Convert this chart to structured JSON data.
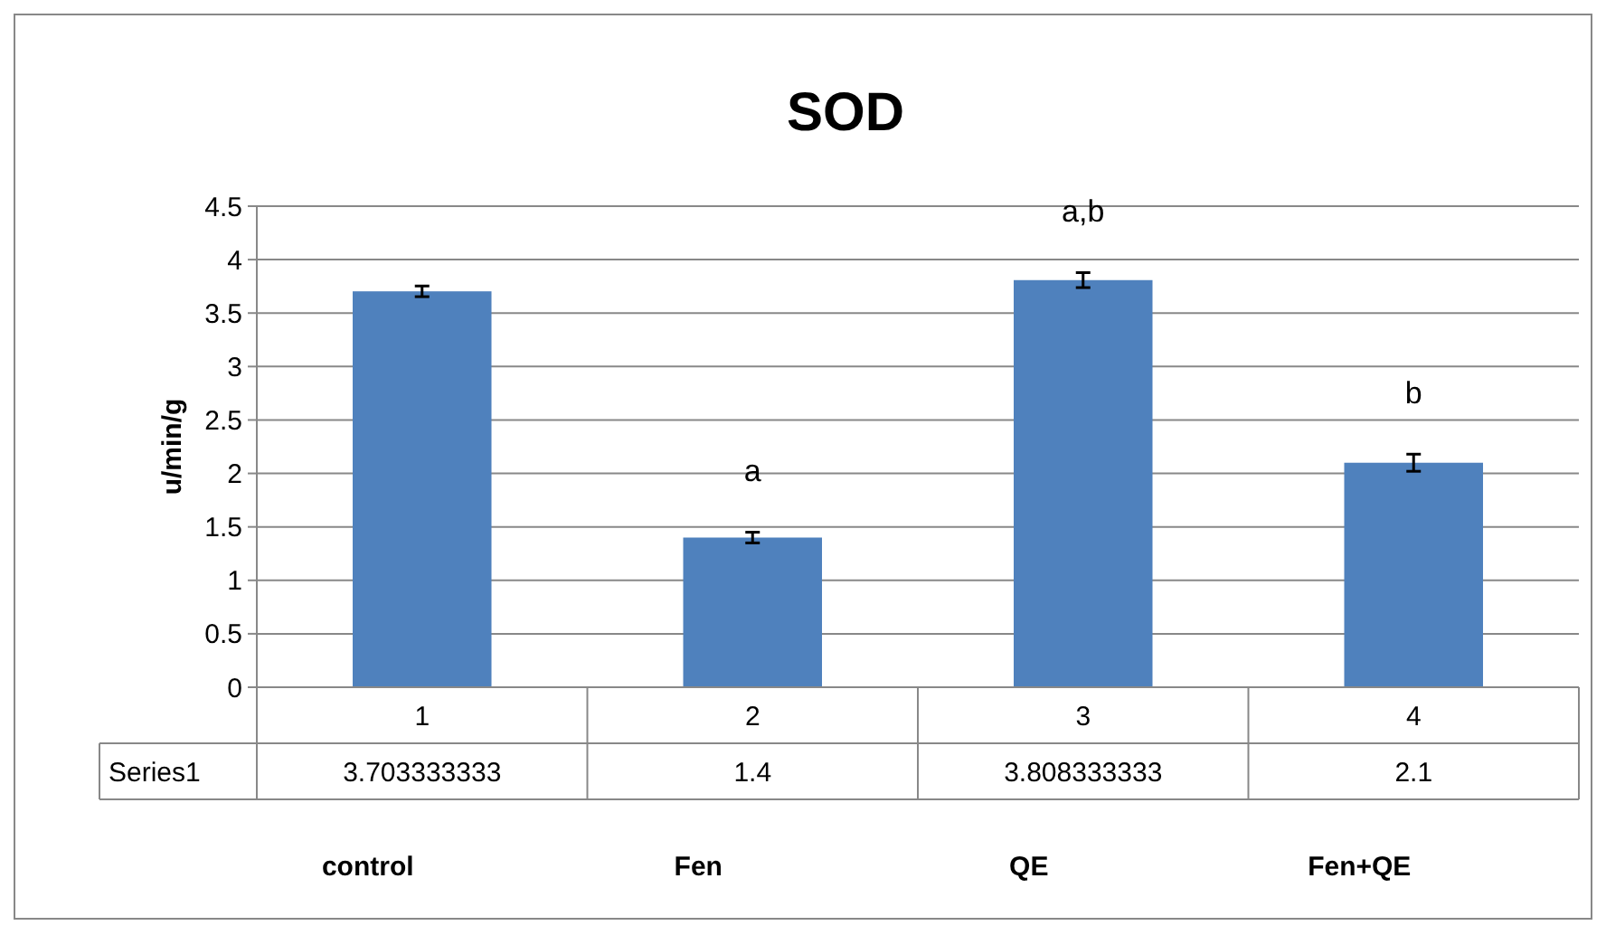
{
  "chart_data": {
    "type": "bar",
    "title": "SOD",
    "ylabel": "u/min/g",
    "categories": [
      "1",
      "2",
      "3",
      "4"
    ],
    "series": [
      {
        "name": "Series1",
        "color": "#4f81bd",
        "values": [
          3.703333333,
          1.4,
          3.808333333,
          2.1
        ],
        "errors": [
          0.05,
          0.05,
          0.07,
          0.08
        ],
        "value_labels": [
          "3.703333333",
          "1.4",
          "3.808333333",
          "2.1"
        ]
      }
    ],
    "ylim": [
      0,
      4.5
    ],
    "yticks": [
      0,
      0.5,
      1,
      1.5,
      2,
      2.5,
      3,
      3.5,
      4,
      4.5
    ],
    "grid": "y",
    "legend": false,
    "annotations": [
      "a",
      "a,b",
      "b",
      "control",
      "Fen",
      "QE",
      "Fen+QE"
    ]
  }
}
